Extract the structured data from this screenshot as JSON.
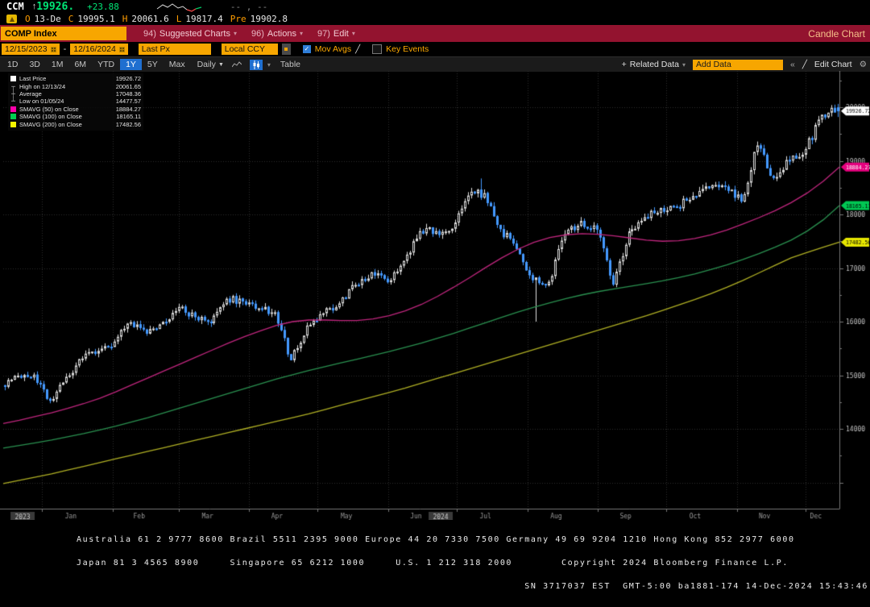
{
  "header": {
    "ticker": "CCM",
    "arrow": "↑",
    "last_price": "19926.",
    "change": "+23.88",
    "right_placeholder": "-- , --",
    "ohlc": [
      {
        "label": "O",
        "value": "13-De"
      },
      {
        "label": "C",
        "value": "19995.1"
      },
      {
        "label": "H",
        "value": "20061.6"
      },
      {
        "label": "L",
        "value": "19817.4"
      },
      {
        "label": "Pre",
        "value": "19902.8"
      }
    ]
  },
  "menubar": {
    "security": "COMP Index",
    "items": [
      {
        "num": "94)",
        "label": "Suggested Charts"
      },
      {
        "num": "96)",
        "label": "Actions"
      },
      {
        "num": "97)",
        "label": "Edit"
      }
    ],
    "right_label": "Candle Chart"
  },
  "controls": {
    "date_from": "12/15/2023",
    "date_to": "12/16/2024",
    "range_dash": "-",
    "price_field": "Last Px",
    "currency": "Local CCY",
    "mov_avgs_label": "Mov Avgs",
    "key_events_label": "Key Events"
  },
  "toolbar": {
    "periods": [
      "1D",
      "3D",
      "1M",
      "6M",
      "YTD",
      "1Y",
      "5Y",
      "Max"
    ],
    "active_period": "1Y",
    "frequency": "Daily",
    "table_label": "Table",
    "related_data_label": "Related Data",
    "add_data_placeholder": "Add Data",
    "edit_chart_label": "Edit Chart"
  },
  "icons": {
    "dropdown": "▾",
    "freq_caret": "▼",
    "check": "✓",
    "pencil": "╱",
    "gear": "⚙",
    "collapse": "«",
    "plus": "+"
  },
  "legend": {
    "rows": [
      {
        "marker": "swatch",
        "color": "#ffffff",
        "label": "Last Price",
        "value": "19926.72"
      },
      {
        "marker": "glyph",
        "glyph": "┬",
        "label": "High on 12/13/24",
        "value": "20061.65"
      },
      {
        "marker": "glyph",
        "glyph": "┼",
        "label": "Average",
        "value": "17048.36"
      },
      {
        "marker": "glyph",
        "glyph": "┴",
        "label": "Low on 01/05/24",
        "value": "14477.57"
      },
      {
        "marker": "swatch",
        "color": "#ff00aa",
        "label": "SMAVG (50) on Close",
        "value": "18884.27"
      },
      {
        "marker": "swatch",
        "color": "#00d050",
        "label": "SMAVG (100) on Close",
        "value": "18165.11"
      },
      {
        "marker": "swatch",
        "color": "#f5f500",
        "label": "SMAVG (200) on Close",
        "value": "17482.56"
      }
    ]
  },
  "chart_data": {
    "type": "candlestick",
    "title": "COMP Index 1Y Daily Candle Chart",
    "x_range": [
      "12/15/2023",
      "12/16/2024"
    ],
    "ylim": [
      12500,
      20700
    ],
    "y_ticks": [
      14000,
      15000,
      16000,
      17000,
      18000,
      19000,
      20000
    ],
    "month_labels": [
      "Jan",
      "Feb",
      "Mar",
      "Apr",
      "May",
      "Jun",
      "Jul",
      "Aug",
      "Sep",
      "Oct",
      "Nov",
      "Dec"
    ],
    "year_labels": [
      "2023",
      "2024"
    ],
    "grid": true,
    "legend_position": "top-left",
    "weekly_closes": [
      14814,
      14993,
      15011,
      14524,
      14973,
      15311,
      15455,
      15629,
      15990,
      15776,
      15997,
      16275,
      16085,
      15973,
      16428,
      16379,
      16248,
      16175,
      15282,
      15928,
      16156,
      16341,
      16686,
      16921,
      16735,
      17133,
      17689,
      17689,
      17733,
      18353,
      18398,
      17727,
      17358,
      16776,
      16745,
      17632,
      17878,
      17714,
      16691,
      17684,
      17948,
      18120,
      18138,
      18343,
      18490,
      18519,
      18240,
      19287,
      18680,
      19004,
      19218,
      19860,
      19927
    ],
    "series": [
      {
        "name": "SMAVG (50) on Close",
        "color": "#c0267e",
        "values": [
          14100,
          14160,
          14230,
          14300,
          14380,
          14470,
          14570,
          14690,
          14820,
          14950,
          15080,
          15210,
          15340,
          15470,
          15600,
          15720,
          15830,
          15930,
          16000,
          16030,
          16030,
          16020,
          16020,
          16050,
          16110,
          16200,
          16320,
          16470,
          16640,
          16820,
          17010,
          17190,
          17350,
          17480,
          17570,
          17620,
          17640,
          17630,
          17600,
          17560,
          17520,
          17500,
          17510,
          17550,
          17620,
          17710,
          17820,
          17940,
          18070,
          18220,
          18400,
          18620,
          18884
        ]
      },
      {
        "name": "SMAVG (100) on Close",
        "color": "#2a9150",
        "values": [
          13640,
          13690,
          13740,
          13790,
          13850,
          13910,
          13980,
          14050,
          14130,
          14210,
          14300,
          14390,
          14480,
          14570,
          14660,
          14750,
          14840,
          14930,
          15010,
          15090,
          15160,
          15230,
          15300,
          15370,
          15440,
          15520,
          15600,
          15690,
          15780,
          15880,
          15980,
          16080,
          16180,
          16270,
          16350,
          16430,
          16500,
          16560,
          16610,
          16660,
          16710,
          16760,
          16820,
          16890,
          16970,
          17060,
          17160,
          17270,
          17390,
          17520,
          17690,
          17900,
          18165
        ]
      },
      {
        "name": "SMAVG (200) on Close",
        "color": "#b0b024",
        "values": [
          12980,
          13040,
          13100,
          13160,
          13230,
          13300,
          13370,
          13440,
          13510,
          13580,
          13650,
          13720,
          13790,
          13860,
          13930,
          14000,
          14070,
          14140,
          14210,
          14280,
          14360,
          14440,
          14520,
          14600,
          14680,
          14760,
          14850,
          14940,
          15030,
          15120,
          15210,
          15300,
          15390,
          15480,
          15570,
          15660,
          15750,
          15840,
          15930,
          16020,
          16110,
          16210,
          16310,
          16410,
          16520,
          16640,
          16770,
          16910,
          17050,
          17190,
          17290,
          17390,
          17482
        ]
      }
    ],
    "stats": {
      "last": 19926.72,
      "high": 20061.65,
      "high_date": "12/13/24",
      "average": 17048.36,
      "low": 14477.57,
      "low_date": "01/05/24",
      "sma50": 18884.27,
      "sma100": 18165.11,
      "sma200": 17482.56
    },
    "last_day": {
      "open": 19995.1,
      "high": 20061.65,
      "low": 19817.4,
      "close": 19926.72,
      "prev": 19902.8
    },
    "intraperiod_marks": {
      "jul_high": 18671,
      "aug_low": 16000
    },
    "axis_badges": [
      {
        "value": "19926.72",
        "bg": "#ffffff",
        "fg": "#000000",
        "v": 19926.72
      },
      {
        "value": "18884.27",
        "bg": "#e6007e",
        "fg": "#ffffff",
        "v": 18884.27
      },
      {
        "value": "18165.11",
        "bg": "#00c853",
        "fg": "#000000",
        "v": 18165.11
      },
      {
        "value": "17482.56",
        "bg": "#e6e600",
        "fg": "#000000",
        "v": 17482.56
      }
    ],
    "colors": {
      "up": "#e0e0e0",
      "down": "#4499ff",
      "grid": "#2e2e2e",
      "axis": "#777777",
      "tick_text": "#c0c0c0",
      "month_text": "#999999",
      "year_box_bg": "#3a3a3a",
      "year_box_fg": "#cccccc"
    }
  },
  "footer": {
    "line1": "Australia 61 2 9777 8600 Brazil 5511 2395 9000 Europe 44 20 7330 7500 Germany 49 69 9204 1210 Hong Kong 852 2977 6000",
    "line2": "Japan 81 3 4565 8900     Singapore 65 6212 1000     U.S. 1 212 318 2000        Copyright 2024 Bloomberg Finance L.P.",
    "line3": "SN 3717037 EST  GMT-5:00 ba1881-174 14-Dec-2024 15:43:46"
  }
}
